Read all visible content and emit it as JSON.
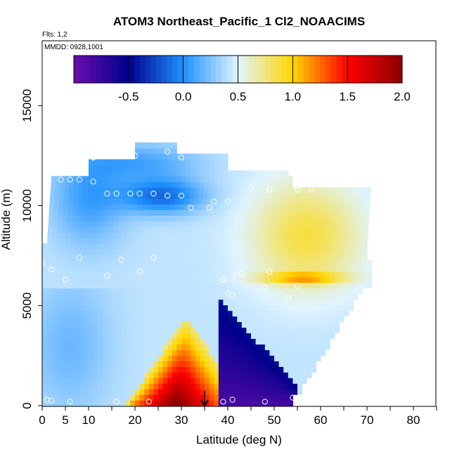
{
  "chart_data": {
    "type": "heatmap",
    "title": "ATOM3 Northeast_Pacific_1 Cl2_NOAACIMS",
    "flights_note": "Flts: 1,2",
    "date_note": "MMDD: 0928,1001",
    "xlabel": "Latitude (deg N)",
    "ylabel": "Altitude (m)",
    "xlim": [
      0,
      85
    ],
    "ylim": [
      0,
      18000
    ],
    "x_ticks": [
      0,
      5,
      10,
      20,
      30,
      40,
      50,
      60,
      70,
      80
    ],
    "y_ticks": [
      0,
      5000,
      10000,
      15000
    ],
    "colorbar": {
      "range": [
        -1,
        2
      ],
      "ticks": [
        -0.5,
        0.0,
        0.5,
        1.0,
        1.5,
        2.0
      ],
      "tick_labels": [
        "-0.5",
        "0.0",
        "0.5",
        "1.0",
        "1.5",
        "2.0"
      ],
      "colors": [
        "#6a0dad",
        "#00008b",
        "#1e90ff",
        "#e0f4ff",
        "#ffd700",
        "#ff0000",
        "#8b0000"
      ]
    },
    "arrow_latitude": 35,
    "points": [
      [
        0,
        7100
      ],
      [
        1,
        300
      ],
      [
        2,
        250
      ],
      [
        6,
        200
      ],
      [
        2,
        6800
      ],
      [
        5,
        6300
      ],
      [
        2,
        11900
      ],
      [
        4,
        11300
      ],
      [
        6,
        11300
      ],
      [
        8,
        11300
      ],
      [
        11,
        11200
      ],
      [
        11,
        12400
      ],
      [
        14,
        10600
      ],
      [
        16,
        10600
      ],
      [
        19,
        10600
      ],
      [
        21,
        10600
      ],
      [
        24,
        10600
      ],
      [
        27,
        10500
      ],
      [
        30,
        10500
      ],
      [
        20,
        12500
      ],
      [
        27,
        12700
      ],
      [
        30,
        12400
      ],
      [
        32,
        9900
      ],
      [
        36,
        9900
      ],
      [
        37,
        10200
      ],
      [
        40,
        10200
      ],
      [
        8,
        7400
      ],
      [
        14,
        6500
      ],
      [
        17,
        7300
      ],
      [
        21,
        6700
      ],
      [
        24,
        7400
      ],
      [
        39,
        6300
      ],
      [
        43,
        6600
      ],
      [
        49,
        6700
      ],
      [
        48,
        5900
      ],
      [
        40,
        5600
      ],
      [
        41,
        5500
      ],
      [
        53,
        5400
      ],
      [
        55,
        6000
      ],
      [
        45,
        10900
      ],
      [
        49,
        10800
      ],
      [
        55,
        10800
      ],
      [
        58,
        10800
      ],
      [
        60,
        11100
      ],
      [
        62,
        11200
      ],
      [
        64,
        11100
      ],
      [
        16,
        200
      ],
      [
        23,
        200
      ],
      [
        39,
        200
      ],
      [
        41,
        300
      ],
      [
        48,
        200
      ],
      [
        54,
        400
      ]
    ]
  }
}
